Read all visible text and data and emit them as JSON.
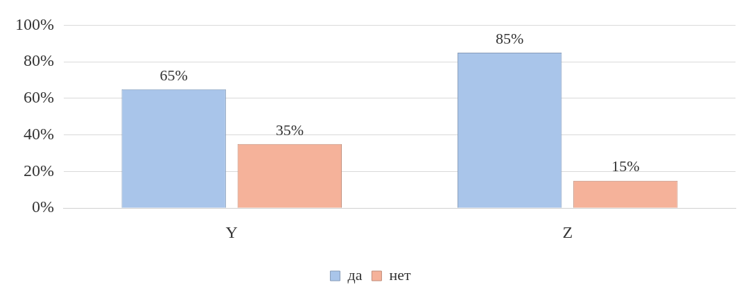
{
  "chart_data": {
    "type": "bar",
    "categories": [
      "Y",
      "Z"
    ],
    "series": [
      {
        "name": "да",
        "color": "#a9c5ea",
        "values": [
          65,
          85
        ],
        "value_labels": [
          "65%",
          "85%"
        ]
      },
      {
        "name": "нет",
        "color": "#f5b29a",
        "values": [
          35,
          15
        ],
        "value_labels": [
          "35%",
          "15%"
        ]
      }
    ],
    "ylim": [
      0,
      100
    ],
    "yticks": [
      {
        "value": 0,
        "label": "0%"
      },
      {
        "value": 20,
        "label": "20%"
      },
      {
        "value": 40,
        "label": "40%"
      },
      {
        "value": 60,
        "label": "60%"
      },
      {
        "value": 80,
        "label": "80%"
      },
      {
        "value": 100,
        "label": "100%"
      }
    ],
    "grid": "y",
    "legend": "bottom"
  }
}
